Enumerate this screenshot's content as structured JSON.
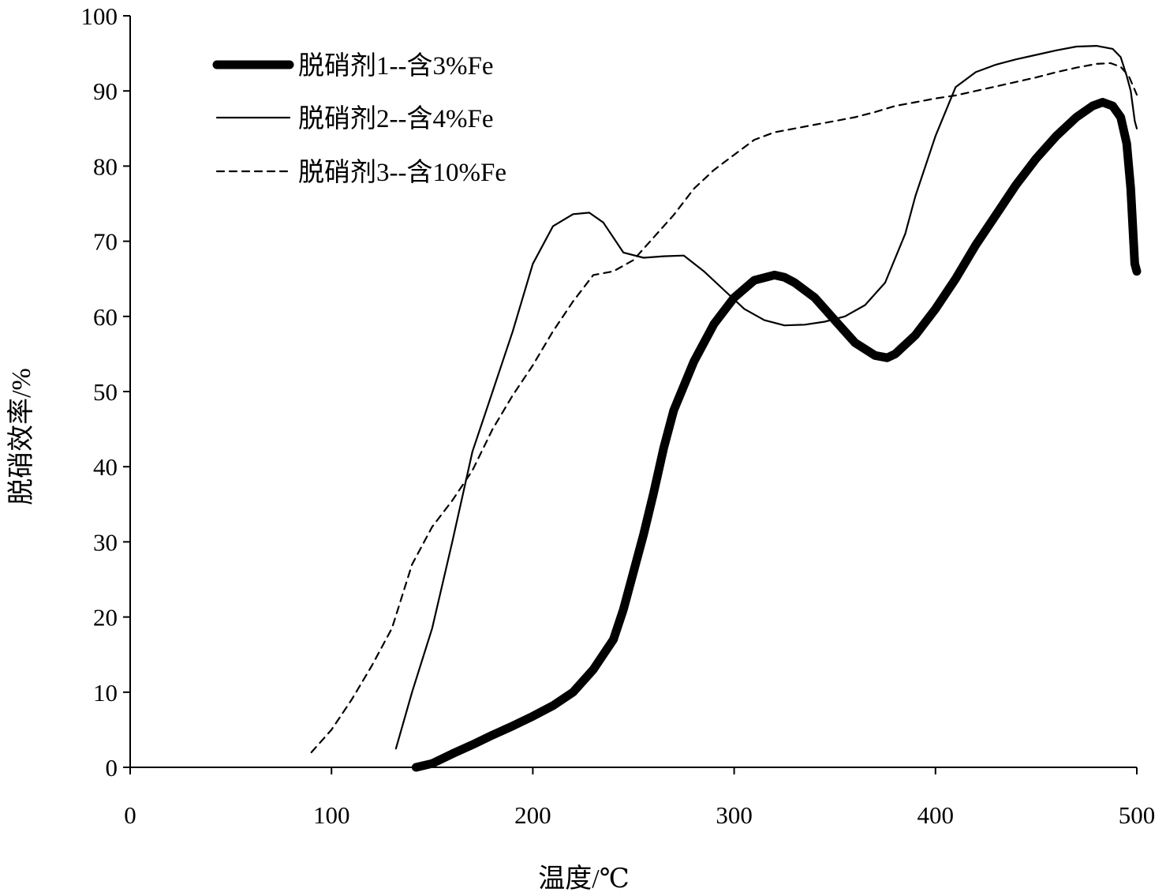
{
  "chart_data": {
    "type": "line",
    "title": "",
    "xlabel": "温度/℃",
    "ylabel": "脱硝效率/%",
    "xlim": [
      0,
      500
    ],
    "ylim": [
      0,
      100
    ],
    "xticks": [
      "0",
      "100",
      "200",
      "300",
      "400",
      "500"
    ],
    "yticks": [
      "0",
      "10",
      "20",
      "30",
      "40",
      "50",
      "60",
      "70",
      "80",
      "90",
      "100"
    ],
    "grid": false,
    "legend_position": "top-left",
    "series": [
      {
        "name": "脱硝剂1--含3%Fe",
        "style": "thick-solid",
        "color": "#000000",
        "points": [
          [
            142,
            0
          ],
          [
            150,
            0.5
          ],
          [
            160,
            1.8
          ],
          [
            170,
            3.0
          ],
          [
            180,
            4.3
          ],
          [
            190,
            5.5
          ],
          [
            200,
            6.8
          ],
          [
            210,
            8.2
          ],
          [
            220,
            10.0
          ],
          [
            230,
            13.0
          ],
          [
            240,
            17.0
          ],
          [
            245,
            21.0
          ],
          [
            250,
            26.0
          ],
          [
            255,
            31.0
          ],
          [
            260,
            36.5
          ],
          [
            265,
            42.5
          ],
          [
            270,
            47.5
          ],
          [
            280,
            54.0
          ],
          [
            290,
            59.0
          ],
          [
            300,
            62.5
          ],
          [
            310,
            64.8
          ],
          [
            320,
            65.5
          ],
          [
            325,
            65.2
          ],
          [
            330,
            64.5
          ],
          [
            340,
            62.5
          ],
          [
            350,
            59.5
          ],
          [
            360,
            56.5
          ],
          [
            370,
            54.8
          ],
          [
            376,
            54.5
          ],
          [
            380,
            55.0
          ],
          [
            390,
            57.5
          ],
          [
            400,
            61.0
          ],
          [
            410,
            65.0
          ],
          [
            420,
            69.5
          ],
          [
            430,
            73.5
          ],
          [
            440,
            77.5
          ],
          [
            450,
            81.0
          ],
          [
            460,
            84.0
          ],
          [
            470,
            86.5
          ],
          [
            478,
            88.0
          ],
          [
            483,
            88.5
          ],
          [
            488,
            88.0
          ],
          [
            492,
            86.5
          ],
          [
            495,
            83.0
          ],
          [
            497,
            77.0
          ],
          [
            499,
            67.0
          ],
          [
            500,
            66.0
          ]
        ]
      },
      {
        "name": "脱硝剂2--含4%Fe",
        "style": "thin-solid",
        "color": "#000000",
        "points": [
          [
            132,
            2.5
          ],
          [
            140,
            10.0
          ],
          [
            150,
            18.5
          ],
          [
            160,
            30.0
          ],
          [
            170,
            42.0
          ],
          [
            180,
            50.0
          ],
          [
            190,
            58.0
          ],
          [
            200,
            67.0
          ],
          [
            210,
            72.0
          ],
          [
            220,
            73.6
          ],
          [
            228,
            73.8
          ],
          [
            235,
            72.5
          ],
          [
            245,
            68.5
          ],
          [
            255,
            67.8
          ],
          [
            265,
            68.0
          ],
          [
            275,
            68.1
          ],
          [
            285,
            66.0
          ],
          [
            295,
            63.5
          ],
          [
            305,
            61.0
          ],
          [
            315,
            59.5
          ],
          [
            325,
            58.8
          ],
          [
            335,
            58.9
          ],
          [
            345,
            59.3
          ],
          [
            355,
            60.0
          ],
          [
            365,
            61.5
          ],
          [
            375,
            64.5
          ],
          [
            385,
            71.0
          ],
          [
            390,
            76.0
          ],
          [
            400,
            84.0
          ],
          [
            410,
            90.5
          ],
          [
            420,
            92.5
          ],
          [
            430,
            93.5
          ],
          [
            440,
            94.2
          ],
          [
            450,
            94.8
          ],
          [
            460,
            95.4
          ],
          [
            470,
            95.9
          ],
          [
            480,
            96.0
          ],
          [
            488,
            95.6
          ],
          [
            492,
            94.5
          ],
          [
            495,
            92.0
          ],
          [
            497,
            90.0
          ],
          [
            499,
            86.0
          ],
          [
            500,
            85.0
          ]
        ]
      },
      {
        "name": "脱硝剂3--含10%Fe",
        "style": "dashed",
        "color": "#000000",
        "points": [
          [
            90,
            2.0
          ],
          [
            100,
            5.0
          ],
          [
            110,
            9.0
          ],
          [
            120,
            13.5
          ],
          [
            130,
            18.5
          ],
          [
            140,
            27.0
          ],
          [
            150,
            32.0
          ],
          [
            160,
            35.5
          ],
          [
            170,
            39.5
          ],
          [
            180,
            45.0
          ],
          [
            190,
            49.5
          ],
          [
            200,
            53.5
          ],
          [
            210,
            58.0
          ],
          [
            220,
            62.0
          ],
          [
            230,
            65.5
          ],
          [
            240,
            66.0
          ],
          [
            250,
            67.5
          ],
          [
            260,
            70.5
          ],
          [
            270,
            73.5
          ],
          [
            280,
            77.0
          ],
          [
            290,
            79.5
          ],
          [
            300,
            81.5
          ],
          [
            310,
            83.5
          ],
          [
            320,
            84.5
          ],
          [
            330,
            85.0
          ],
          [
            340,
            85.5
          ],
          [
            350,
            86.0
          ],
          [
            360,
            86.5
          ],
          [
            370,
            87.2
          ],
          [
            380,
            88.0
          ],
          [
            390,
            88.5
          ],
          [
            400,
            89.0
          ],
          [
            410,
            89.4
          ],
          [
            420,
            90.0
          ],
          [
            430,
            90.6
          ],
          [
            440,
            91.2
          ],
          [
            450,
            91.8
          ],
          [
            460,
            92.5
          ],
          [
            470,
            93.1
          ],
          [
            480,
            93.6
          ],
          [
            487,
            93.7
          ],
          [
            492,
            93.2
          ],
          [
            496,
            92.0
          ],
          [
            500,
            89.5
          ]
        ]
      }
    ]
  }
}
